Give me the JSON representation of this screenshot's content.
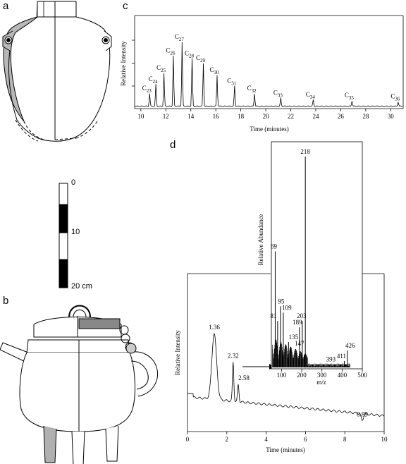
{
  "panels": {
    "a": "a",
    "b": "b",
    "c": "c",
    "d": "d"
  },
  "scale_bar": {
    "ticks": [
      "0",
      "10",
      "20 cm"
    ],
    "segments": [
      "white",
      "black",
      "white",
      "black",
      "white"
    ]
  },
  "chart_data": [
    {
      "id": "c",
      "type": "line",
      "xlabel": "Time (minutes)",
      "ylabel": "Relative Intensity",
      "xlim": [
        9.5,
        31
      ],
      "xticks": [
        10,
        12,
        14,
        16,
        18,
        20,
        22,
        24,
        26,
        28,
        30
      ],
      "grid": false,
      "peaks": [
        {
          "label": "C",
          "sub": "23",
          "x": 10.7,
          "y": 0.14
        },
        {
          "label": "C",
          "sub": "24",
          "x": 11.2,
          "y": 0.24
        },
        {
          "label": "C",
          "sub": "25",
          "x": 11.85,
          "y": 0.36
        },
        {
          "label": "C",
          "sub": "26",
          "x": 12.6,
          "y": 0.55
        },
        {
          "label": "C",
          "sub": "27",
          "x": 13.3,
          "y": 0.7
        },
        {
          "label": "C",
          "sub": "28",
          "x": 14.1,
          "y": 0.52
        },
        {
          "label": "C",
          "sub": "29",
          "x": 15.0,
          "y": 0.47
        },
        {
          "label": "C",
          "sub": "30",
          "x": 16.1,
          "y": 0.34
        },
        {
          "label": "C",
          "sub": "31",
          "x": 17.5,
          "y": 0.22
        },
        {
          "label": "C",
          "sub": "32",
          "x": 19.1,
          "y": 0.14
        },
        {
          "label": "C",
          "sub": "33",
          "x": 21.2,
          "y": 0.09
        },
        {
          "label": "C",
          "sub": "34",
          "x": 23.8,
          "y": 0.07
        },
        {
          "label": "C",
          "sub": "35",
          "x": 26.9,
          "y": 0.06
        },
        {
          "label": "C",
          "sub": "36",
          "x": 30.6,
          "y": 0.05
        }
      ]
    },
    {
      "id": "d",
      "type": "line",
      "xlabel": "Time (minutes)",
      "ylabel": "Relative Intensity",
      "xlim": [
        0,
        10
      ],
      "xticks": [
        0,
        2,
        4,
        6,
        8,
        10
      ],
      "grid": false,
      "peaks": [
        {
          "label": "1.36",
          "x": 1.36,
          "y": 0.62
        },
        {
          "label": "2.32",
          "x": 2.32,
          "y": 0.44
        },
        {
          "label": "2.58",
          "x": 2.58,
          "y": 0.3
        },
        {
          "label": "8.89",
          "x": 8.89,
          "y": 0.07
        }
      ]
    },
    {
      "id": "d-inset",
      "type": "bar",
      "xlabel": "m/z",
      "ylabel": "Relative Abundance",
      "xlim": [
        50,
        500
      ],
      "xticks": [
        100,
        200,
        300,
        400,
        500
      ],
      "grid": false,
      "peaks": [
        {
          "label": "69",
          "x": 69,
          "y": 55
        },
        {
          "label": "81",
          "x": 81,
          "y": 22
        },
        {
          "label": "95",
          "x": 95,
          "y": 29
        },
        {
          "label": "109",
          "x": 109,
          "y": 26
        },
        {
          "label": "135",
          "x": 135,
          "y": 12
        },
        {
          "label": "147",
          "x": 147,
          "y": 9
        },
        {
          "label": "189",
          "x": 189,
          "y": 19
        },
        {
          "label": "203",
          "x": 203,
          "y": 22
        },
        {
          "label": "218",
          "x": 218,
          "y": 100
        },
        {
          "label": "393",
          "x": 393,
          "y": 1.5
        },
        {
          "label": "411",
          "x": 411,
          "y": 3
        },
        {
          "label": "426",
          "x": 426,
          "y": 8
        }
      ]
    }
  ]
}
